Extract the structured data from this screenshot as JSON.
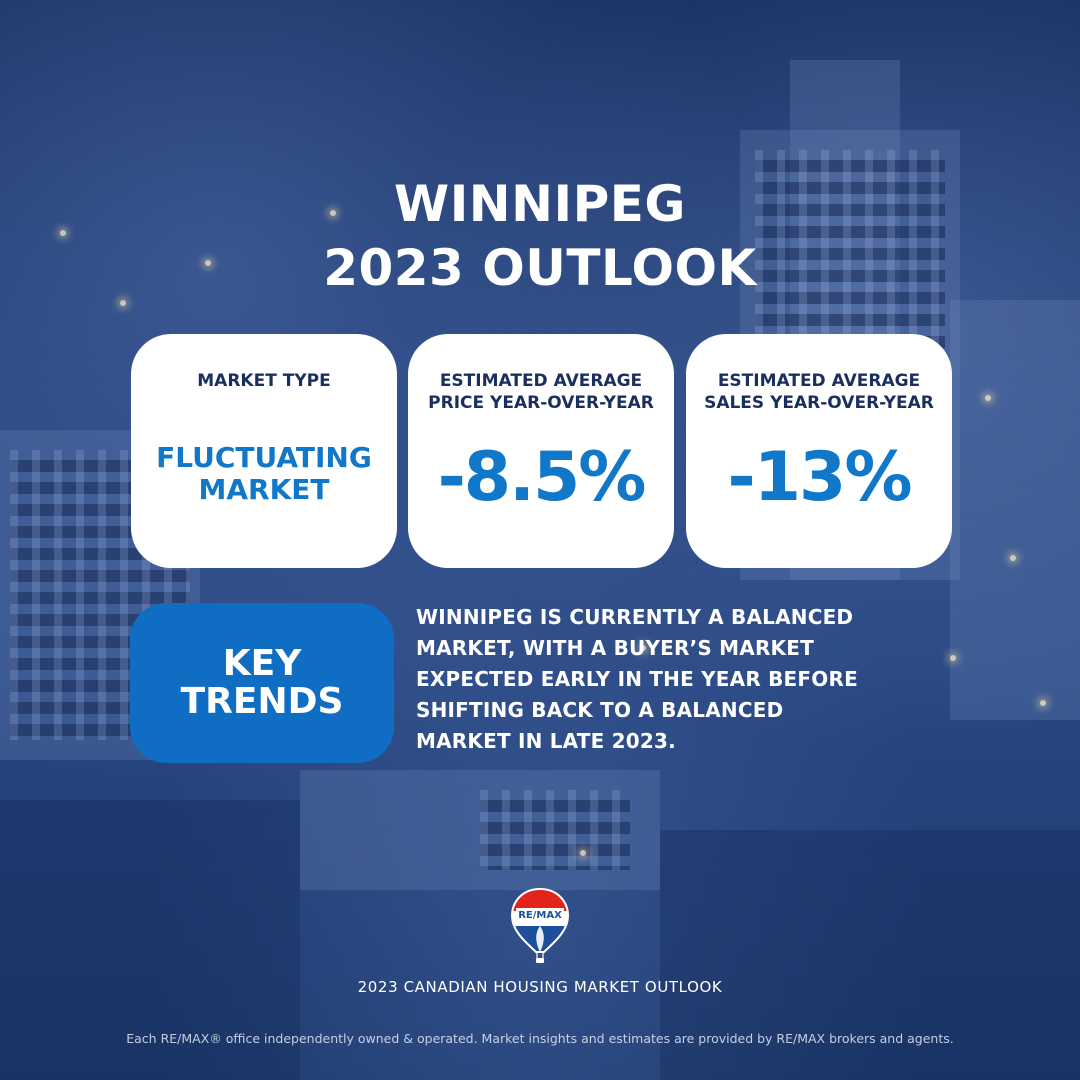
{
  "title": {
    "line1": "WINNIPEG",
    "line2": "2023 OUTLOOK"
  },
  "cards": [
    {
      "label": "MARKET TYPE",
      "value_line1": "FLUCTUATING",
      "value_line2": "MARKET"
    },
    {
      "label_line1": "ESTIMATED AVERAGE",
      "label_line2": "PRICE YEAR-OVER-YEAR",
      "value": "-8.5%"
    },
    {
      "label_line1": "ESTIMATED AVERAGE",
      "label_line2": "SALES YEAR-OVER-YEAR",
      "value": "-13%"
    }
  ],
  "key_trends": {
    "heading_line1": "KEY",
    "heading_line2": "TRENDS",
    "lines": [
      "WINNIPEG IS CURRENTLY A BALANCED",
      "MARKET, WITH A BUYER’S MARKET",
      "EXPECTED EARLY IN THE YEAR BEFORE",
      "SHIFTING BACK TO A BALANCED",
      "MARKET IN LATE 2023."
    ]
  },
  "logo": {
    "text": "RE/MAX",
    "icon": "hot-air-balloon-icon"
  },
  "footer": {
    "title": "2023 CANADIAN HOUSING MARKET OUTLOOK",
    "disclaimer": "Each RE/MAX® office independently owned & operated. Market insights and estimates are provided by RE/MAX brokers and agents."
  },
  "colors": {
    "background": "#1b3567",
    "card": "#ffffff",
    "accent_blue": "#1177c9",
    "label_navy": "#1b2f5e",
    "trends_box": "#0f6ec4"
  }
}
